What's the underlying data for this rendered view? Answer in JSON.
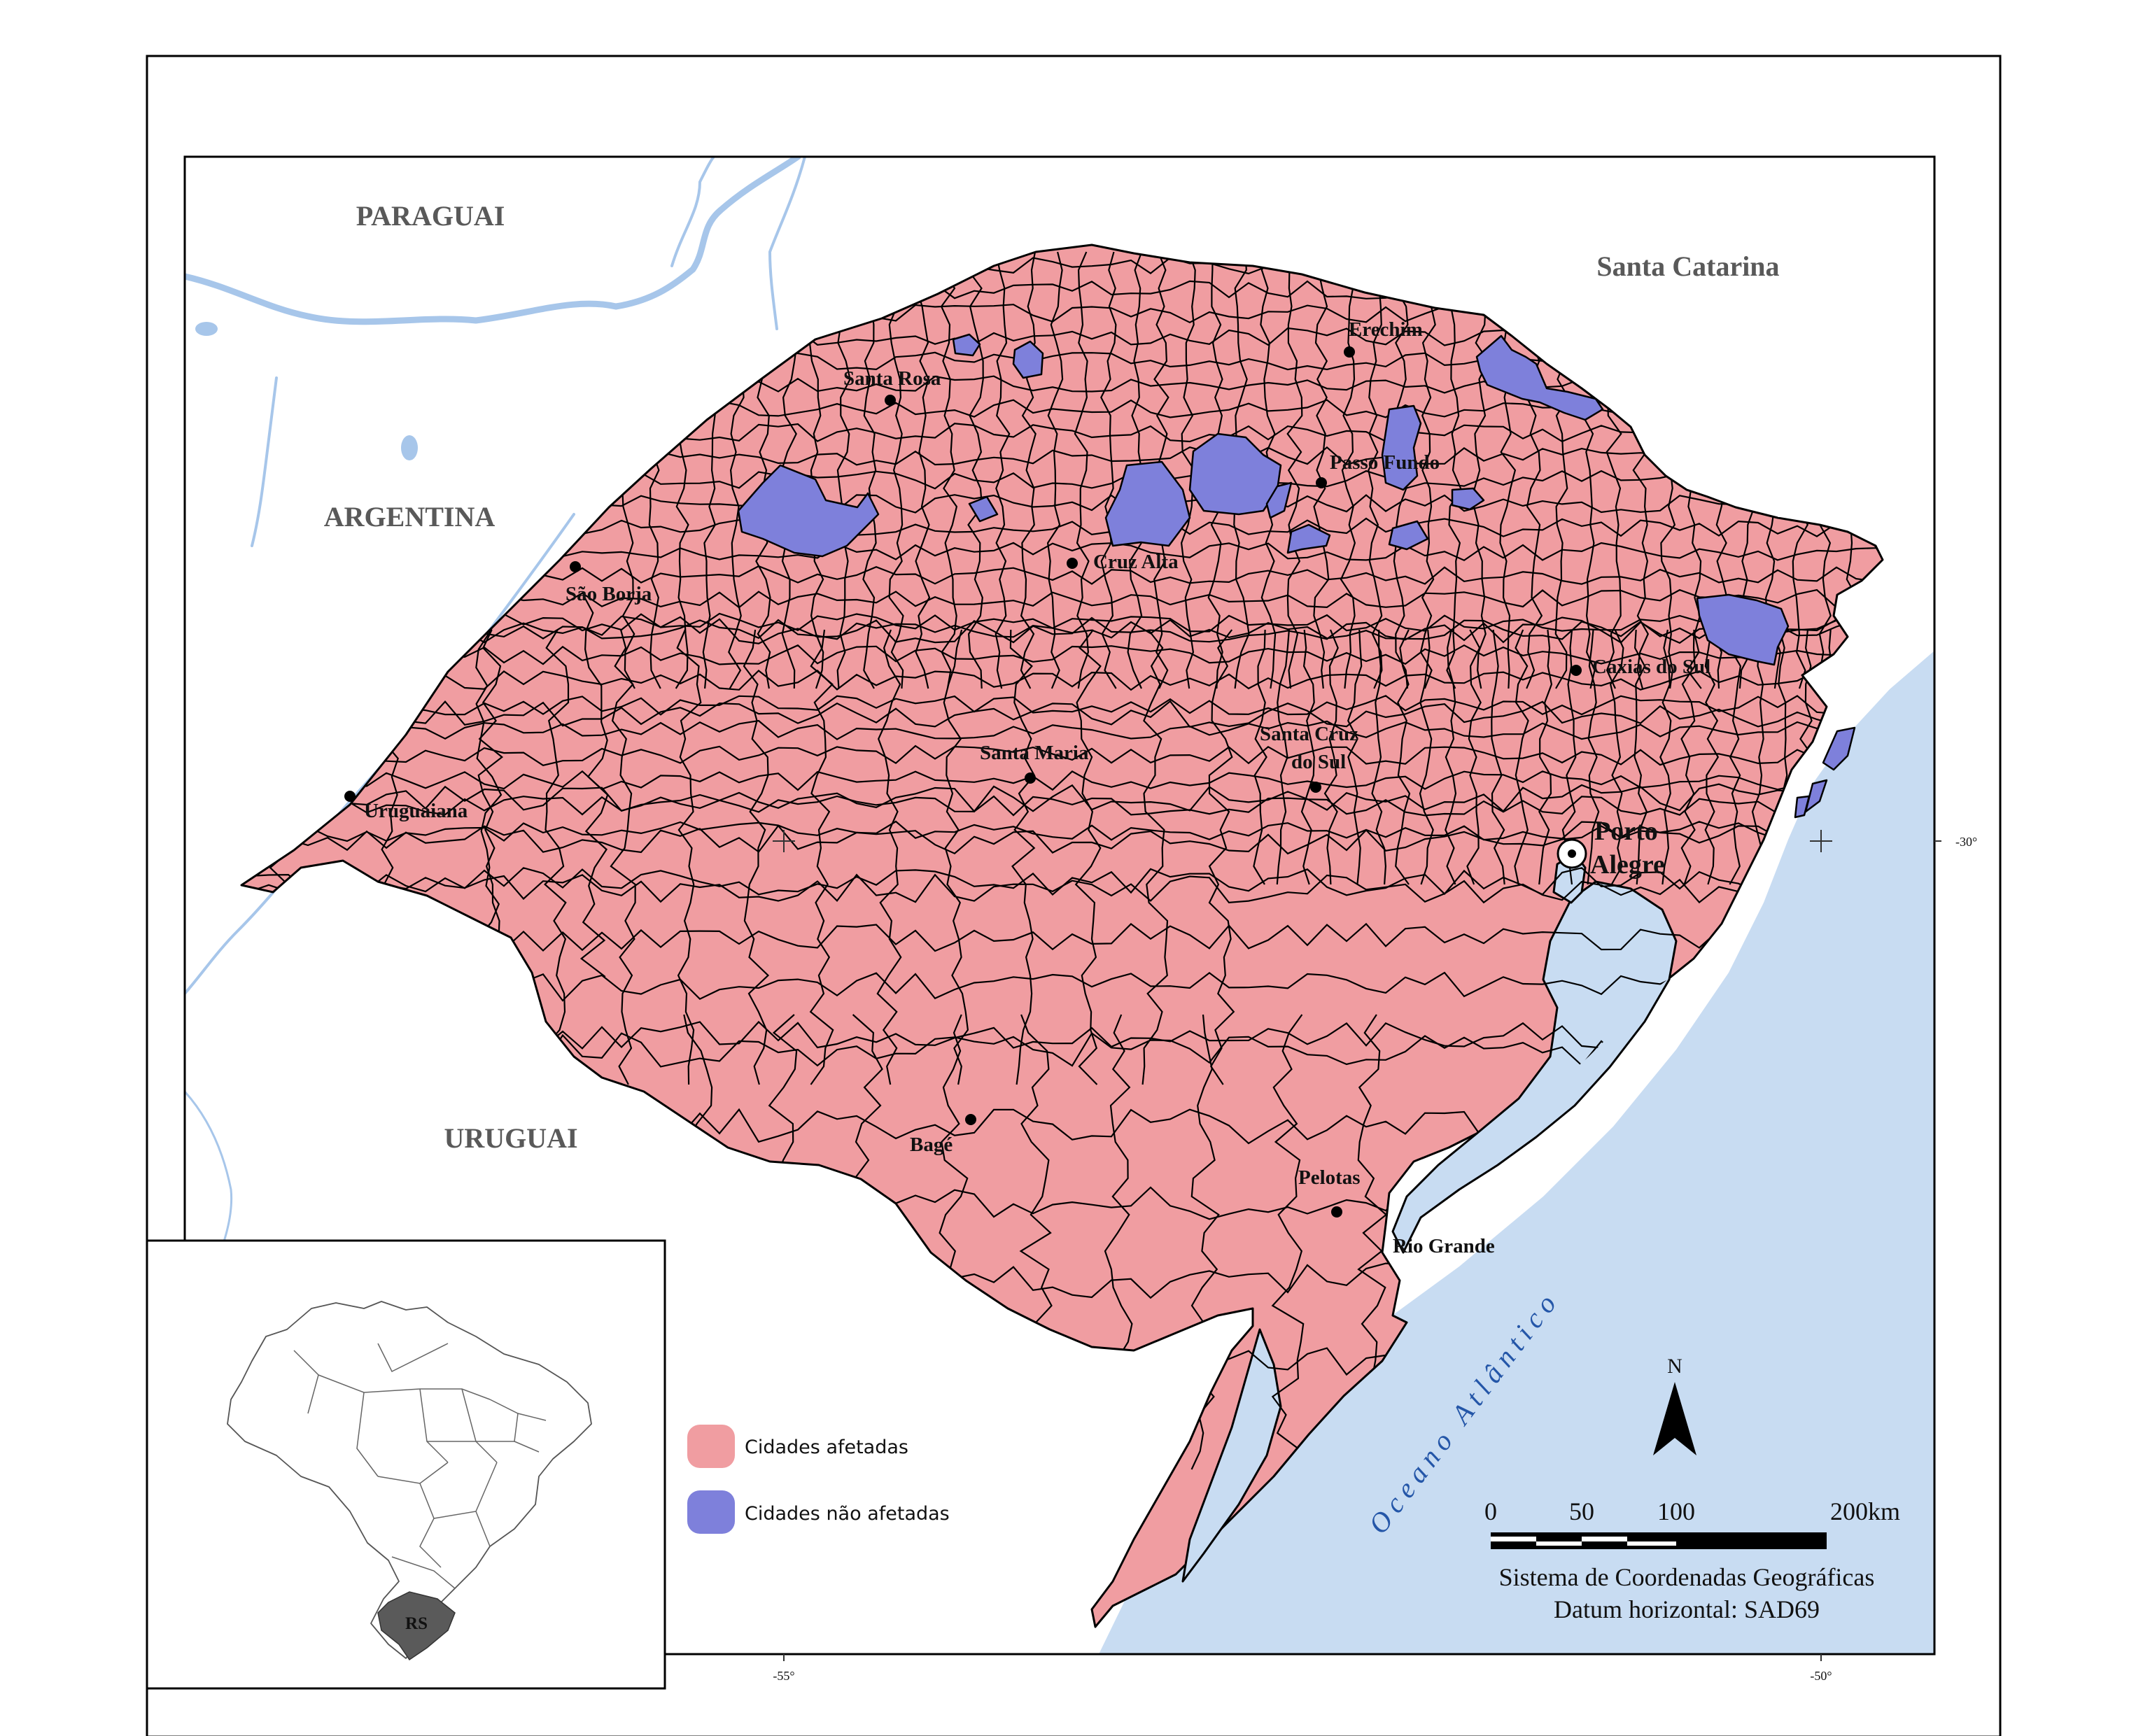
{
  "countries": {
    "paraguai": "PARAGUAI",
    "argentina": "ARGENTINA",
    "uruguai": "URUGUAI"
  },
  "neighbor_state": "Santa Catarina",
  "ocean": "Oceano Atlântico",
  "cities": {
    "erechim": "Erechim",
    "santa_rosa": "Santa Rosa",
    "passo_fundo": "Passo Fundo",
    "cruz_alta": "Cruz Alta",
    "sao_borja": "São Borja",
    "caxias_do_sul": "Caxias do Sul",
    "santa_cruz_do_sul_1": "Santa Cruz",
    "santa_cruz_do_sul_2": "do Sul",
    "santa_maria": "Santa Maria",
    "uruguaiana": "Uruguaiana",
    "porto_alegre_1": "Porto",
    "porto_alegre_2": "Alegre",
    "bage": "Bagé",
    "pelotas": "Pelotas",
    "rio_grande": "Rio Grande"
  },
  "ticks": {
    "lat_30": "-30°",
    "lon_55": "-55°",
    "lon_50": "-50°"
  },
  "legend": {
    "affected": {
      "label": "Cidades afetadas",
      "color": "#f09da1"
    },
    "unaffected": {
      "label": "Cidades não afetadas",
      "color": "#7e80db"
    }
  },
  "north_arrow": "N",
  "scale_bar": {
    "labels": [
      "0",
      "50",
      "100",
      "200km"
    ]
  },
  "credits": {
    "line1": "Sistema de Coordenadas Geográficas",
    "line2": "Datum horizontal: SAD69"
  },
  "inset": {
    "label": "RS"
  },
  "colors": {
    "water": "#c8dcf2",
    "river": "#a7c6ea",
    "affected": "#f09da1",
    "unaffected": "#7e80db",
    "inset_state": "#5a5a5a"
  }
}
